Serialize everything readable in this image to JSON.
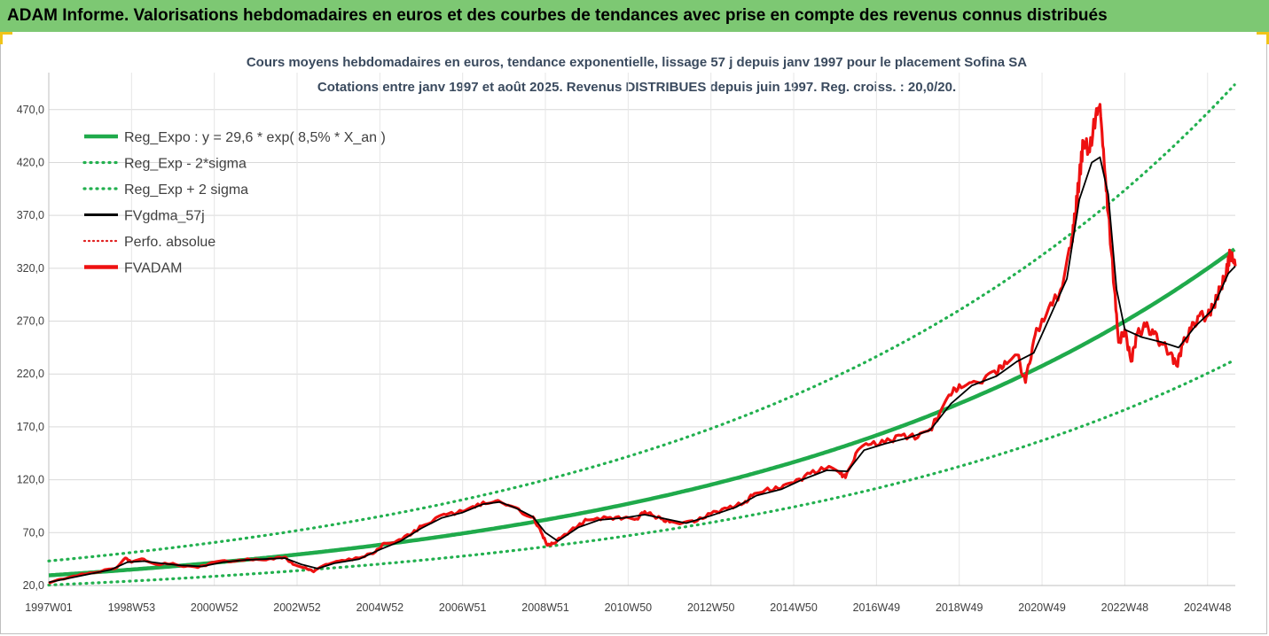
{
  "banner": {
    "title": "ADAM Informe. Valorisations hebdomadaires en euros et des courbes de tendances avec prise en compte des revenus connus distribués"
  },
  "colors": {
    "banner_bg": "#7dc873",
    "trend": "#1faa4b",
    "band": "#22b04f",
    "smooth": "#000000",
    "price": "#ee1111",
    "perf": "#e02020"
  },
  "chart_data": {
    "type": "line",
    "title": "Cours moyens hebdomadaires en euros, tendance exponentielle, lissage 57 j depuis janv 1997 pour le placement Sofina SA",
    "subtitle": "Cotations entre janv 1997 et août 2025. Revenus DISTRIBUES depuis juin 1997. Reg. croiss. : 20,0/20.",
    "xlabel": "",
    "ylabel": "",
    "ylim": [
      20,
      505
    ],
    "x_range_years": [
      1997.0,
      2025.67
    ],
    "y_ticks": [
      "20,0",
      "70,0",
      "120,0",
      "170,0",
      "220,0",
      "270,0",
      "320,0",
      "370,0",
      "420,0",
      "470,0"
    ],
    "x_ticks": [
      {
        "label": "1997W01",
        "year": 1997.0
      },
      {
        "label": "1998W53",
        "year": 1999.0
      },
      {
        "label": "2000W52",
        "year": 2001.0
      },
      {
        "label": "2002W52",
        "year": 2003.0
      },
      {
        "label": "2004W52",
        "year": 2005.0
      },
      {
        "label": "2006W51",
        "year": 2007.0
      },
      {
        "label": "2008W51",
        "year": 2009.0
      },
      {
        "label": "2010W50",
        "year": 2011.0
      },
      {
        "label": "2012W50",
        "year": 2013.0
      },
      {
        "label": "2014W50",
        "year": 2015.0
      },
      {
        "label": "2016W49",
        "year": 2017.0
      },
      {
        "label": "2018W49",
        "year": 2019.0
      },
      {
        "label": "2020W49",
        "year": 2021.0
      },
      {
        "label": "2022W48",
        "year": 2023.0
      },
      {
        "label": "2024W48",
        "year": 2025.0
      }
    ],
    "grid": true,
    "legend_position": "top-left",
    "trend": {
      "a": 29.6,
      "rate": 0.085,
      "minus_factor": 0.69,
      "plus_factor": 1.46
    },
    "legend": [
      {
        "label": "Reg_Expo : y = 29,6 * exp( 8,5% *  X_an )",
        "style": "thick-solid",
        "color_key": "trend"
      },
      {
        "label": "Reg_Exp - 2*sigma",
        "style": "dotted",
        "color_key": "band"
      },
      {
        "label": "Reg_Exp + 2 sigma",
        "style": "dotted",
        "color_key": "band"
      },
      {
        "label": "FVgdma_57j",
        "style": "solid",
        "color_key": "smooth"
      },
      {
        "label": "Perfo. absolue",
        "style": "dotted-thin",
        "color_key": "perf"
      },
      {
        "label": "FVADAM",
        "style": "thick-solid",
        "color_key": "price"
      }
    ],
    "series": [
      {
        "name": "FVADAM",
        "points": [
          [
            1997.0,
            22
          ],
          [
            1997.3,
            26
          ],
          [
            1997.6,
            29
          ],
          [
            1998.0,
            32
          ],
          [
            1998.3,
            34
          ],
          [
            1998.6,
            36
          ],
          [
            1998.85,
            46
          ],
          [
            1999.0,
            42
          ],
          [
            1999.3,
            45
          ],
          [
            1999.6,
            40
          ],
          [
            2000.0,
            41
          ],
          [
            2000.3,
            38
          ],
          [
            2000.6,
            37
          ],
          [
            2001.0,
            42
          ],
          [
            2001.3,
            43
          ],
          [
            2001.6,
            44
          ],
          [
            2002.0,
            45
          ],
          [
            2002.3,
            45
          ],
          [
            2002.7,
            47
          ],
          [
            2002.9,
            40
          ],
          [
            2003.2,
            37
          ],
          [
            2003.4,
            33
          ],
          [
            2003.7,
            40
          ],
          [
            2004.0,
            43
          ],
          [
            2004.5,
            46
          ],
          [
            2004.9,
            52
          ],
          [
            2005.1,
            60
          ],
          [
            2005.4,
            62
          ],
          [
            2005.8,
            70
          ],
          [
            2006.0,
            76
          ],
          [
            2006.3,
            82
          ],
          [
            2006.6,
            87
          ],
          [
            2007.0,
            90
          ],
          [
            2007.3,
            94
          ],
          [
            2007.5,
            99
          ],
          [
            2007.8,
            100
          ],
          [
            2008.1,
            96
          ],
          [
            2008.4,
            90
          ],
          [
            2008.7,
            85
          ],
          [
            2008.9,
            70
          ],
          [
            2009.05,
            58
          ],
          [
            2009.2,
            60
          ],
          [
            2009.4,
            66
          ],
          [
            2009.8,
            77
          ],
          [
            2010.0,
            82
          ],
          [
            2010.5,
            84
          ],
          [
            2010.9,
            84
          ],
          [
            2011.2,
            83
          ],
          [
            2011.4,
            90
          ],
          [
            2011.6,
            86
          ],
          [
            2011.8,
            83
          ],
          [
            2012.0,
            80
          ],
          [
            2012.3,
            79
          ],
          [
            2012.6,
            80
          ],
          [
            2013.0,
            88
          ],
          [
            2013.4,
            93
          ],
          [
            2013.8,
            98
          ],
          [
            2014.0,
            105
          ],
          [
            2014.3,
            110
          ],
          [
            2014.7,
            112
          ],
          [
            2015.0,
            117
          ],
          [
            2015.4,
            126
          ],
          [
            2015.8,
            131
          ],
          [
            2016.1,
            127
          ],
          [
            2016.25,
            122
          ],
          [
            2016.5,
            145
          ],
          [
            2016.8,
            153
          ],
          [
            2017.2,
            155
          ],
          [
            2017.6,
            162
          ],
          [
            2018.0,
            160
          ],
          [
            2018.3,
            168
          ],
          [
            2018.5,
            180
          ],
          [
            2018.8,
            200
          ],
          [
            2019.0,
            210
          ],
          [
            2019.3,
            212
          ],
          [
            2019.6,
            215
          ],
          [
            2019.9,
            220
          ],
          [
            2020.1,
            232
          ],
          [
            2020.4,
            238
          ],
          [
            2020.6,
            212
          ],
          [
            2020.8,
            252
          ],
          [
            2021.0,
            272
          ],
          [
            2021.25,
            285
          ],
          [
            2021.45,
            300
          ],
          [
            2021.7,
            340
          ],
          [
            2021.8,
            370
          ],
          [
            2021.9,
            405
          ],
          [
            2022.0,
            440
          ],
          [
            2022.15,
            430
          ],
          [
            2022.3,
            465
          ],
          [
            2022.4,
            475
          ],
          [
            2022.5,
            420
          ],
          [
            2022.6,
            372
          ],
          [
            2022.75,
            300
          ],
          [
            2022.85,
            250
          ],
          [
            2023.0,
            262
          ],
          [
            2023.15,
            232
          ],
          [
            2023.3,
            258
          ],
          [
            2023.5,
            265
          ],
          [
            2023.7,
            258
          ],
          [
            2023.9,
            248
          ],
          [
            2024.1,
            240
          ],
          [
            2024.25,
            228
          ],
          [
            2024.4,
            248
          ],
          [
            2024.6,
            262
          ],
          [
            2024.8,
            275
          ],
          [
            2025.0,
            275
          ],
          [
            2025.15,
            285
          ],
          [
            2025.3,
            300
          ],
          [
            2025.45,
            315
          ],
          [
            2025.55,
            335
          ],
          [
            2025.67,
            322
          ]
        ]
      },
      {
        "name": "FVgdma_57j",
        "points": [
          [
            1997.0,
            23
          ],
          [
            1997.5,
            27
          ],
          [
            1998.0,
            31
          ],
          [
            1998.5,
            35
          ],
          [
            1998.9,
            42
          ],
          [
            1999.3,
            43
          ],
          [
            1999.7,
            41
          ],
          [
            2000.2,
            39
          ],
          [
            2000.7,
            38
          ],
          [
            2001.2,
            42
          ],
          [
            2001.7,
            44
          ],
          [
            2002.2,
            45
          ],
          [
            2002.7,
            46
          ],
          [
            2003.1,
            40
          ],
          [
            2003.5,
            36
          ],
          [
            2003.9,
            41
          ],
          [
            2004.5,
            45
          ],
          [
            2005.0,
            54
          ],
          [
            2005.5,
            62
          ],
          [
            2006.0,
            74
          ],
          [
            2006.5,
            84
          ],
          [
            2007.0,
            89
          ],
          [
            2007.5,
            97
          ],
          [
            2007.9,
            99
          ],
          [
            2008.3,
            93
          ],
          [
            2008.7,
            85
          ],
          [
            2009.0,
            70
          ],
          [
            2009.3,
            62
          ],
          [
            2009.8,
            75
          ],
          [
            2010.3,
            82
          ],
          [
            2010.9,
            84
          ],
          [
            2011.4,
            87
          ],
          [
            2011.9,
            83
          ],
          [
            2012.4,
            79
          ],
          [
            2013.0,
            86
          ],
          [
            2013.6,
            94
          ],
          [
            2014.1,
            105
          ],
          [
            2014.7,
            111
          ],
          [
            2015.2,
            120
          ],
          [
            2015.8,
            129
          ],
          [
            2016.3,
            128
          ],
          [
            2016.7,
            148
          ],
          [
            2017.2,
            154
          ],
          [
            2017.8,
            160
          ],
          [
            2018.3,
            167
          ],
          [
            2018.8,
            192
          ],
          [
            2019.3,
            209
          ],
          [
            2019.9,
            218
          ],
          [
            2020.4,
            232
          ],
          [
            2020.8,
            240
          ],
          [
            2021.2,
            275
          ],
          [
            2021.6,
            310
          ],
          [
            2021.9,
            385
          ],
          [
            2022.2,
            420
          ],
          [
            2022.4,
            425
          ],
          [
            2022.6,
            390
          ],
          [
            2022.8,
            300
          ],
          [
            2023.0,
            262
          ],
          [
            2023.4,
            255
          ],
          [
            2023.9,
            250
          ],
          [
            2024.3,
            245
          ],
          [
            2024.7,
            265
          ],
          [
            2025.1,
            280
          ],
          [
            2025.5,
            315
          ],
          [
            2025.67,
            322
          ]
        ]
      }
    ]
  }
}
